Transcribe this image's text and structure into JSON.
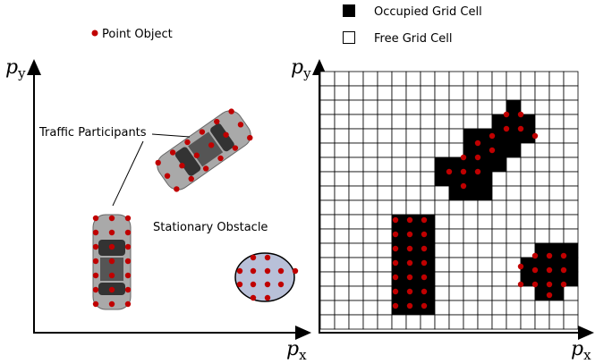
{
  "legend": {
    "point": "Point Object",
    "occupied": "Occupied Grid Cell",
    "free": "Free Grid Cell"
  },
  "annotations": {
    "traffic": "Traffic Participants",
    "stationary": "Stationary Obstacle"
  },
  "left_axes": {
    "y": {
      "base": "p",
      "sub": "y"
    },
    "x": {
      "base": "p",
      "sub": "x"
    }
  },
  "right_axes": {
    "y": {
      "base": "p",
      "sub": "y"
    },
    "x": {
      "base": "p",
      "sub": "x"
    }
  }
}
